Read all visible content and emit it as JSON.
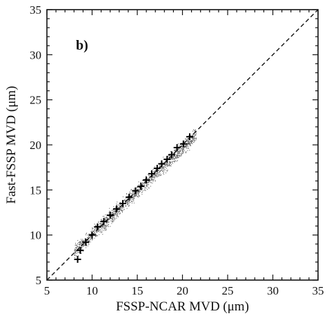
{
  "chart_data": {
    "type": "scatter",
    "panel_label": "b)",
    "xlabel": "FSSP-NCAR MVD (μm)",
    "ylabel": "Fast-FSSP MVD (μm)",
    "xlim": [
      5,
      35
    ],
    "ylim": [
      5,
      35
    ],
    "x_ticks": [
      "5",
      "10",
      "15",
      "20",
      "25",
      "30",
      "35"
    ],
    "y_ticks": [
      "5",
      "10",
      "15",
      "20",
      "25",
      "30",
      "35"
    ],
    "reference_line": {
      "style": "dashed",
      "from": [
        5,
        5
      ],
      "to": [
        35,
        35
      ]
    },
    "scatter_cloud": {
      "x_range": [
        8,
        21.5
      ],
      "slope": 0.965,
      "intercept": 0.4,
      "spread": 0.55,
      "color": "#555555"
    },
    "series": [
      {
        "marker": "plus",
        "x": [
          8.4,
          8.7,
          9.3,
          10.0,
          10.6,
          11.3,
          12.0,
          12.7,
          13.4,
          14.1,
          14.8,
          15.4,
          16.0,
          16.6,
          17.2,
          17.7,
          18.3,
          18.8,
          19.4,
          20.1,
          20.8
        ],
        "y": [
          7.3,
          8.3,
          9.2,
          10.0,
          10.9,
          11.5,
          12.2,
          12.9,
          13.5,
          14.2,
          14.9,
          15.4,
          16.1,
          16.8,
          17.4,
          17.9,
          18.4,
          18.9,
          19.7,
          20.1,
          20.9
        ]
      }
    ]
  }
}
